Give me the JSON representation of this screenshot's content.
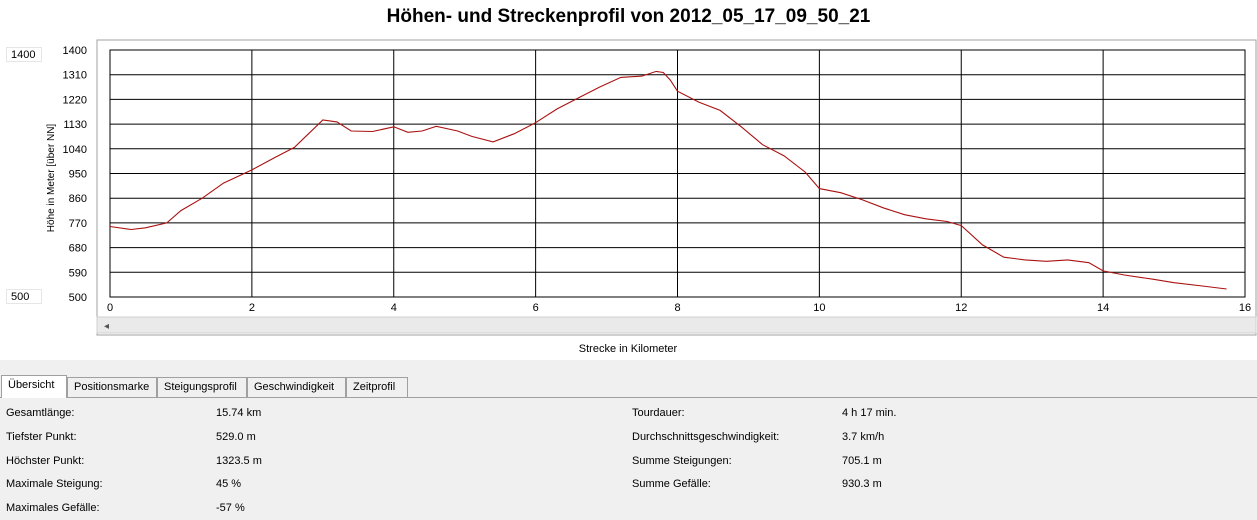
{
  "window": {
    "title": "Höhen- und Streckenprofil von 2012_05_17_09_50_21"
  },
  "scale_inputs": {
    "max": "1400",
    "min": "500"
  },
  "tabs": [
    {
      "label": "Übersicht",
      "active": true
    },
    {
      "label": "Positionsmarke",
      "active": false
    },
    {
      "label": "Steigungsprofil",
      "active": false
    },
    {
      "label": "Geschwindigkeit",
      "active": false
    },
    {
      "label": "Zeitprofil",
      "active": false
    }
  ],
  "stats_left": [
    {
      "label": "Gesamtlänge:",
      "value": "15.74 km"
    },
    {
      "label": "Tiefster Punkt:",
      "value": "529.0 m"
    },
    {
      "label": "Höchster Punkt:",
      "value": "1323.5 m"
    },
    {
      "label": "Maximale Steigung:",
      "value": "45 %"
    },
    {
      "label": "Maximales Gefälle:",
      "value": "-57 %"
    }
  ],
  "stats_right": [
    {
      "label": "Tourdauer:",
      "value": "4 h 17 min."
    },
    {
      "label": "Durchschnittsgeschwindigkeit:",
      "value": "3.7 km/h"
    },
    {
      "label": "Summe Steigungen:",
      "value": "705.1 m"
    },
    {
      "label": "Summe Gefälle:",
      "value": "930.3 m"
    }
  ],
  "chart_data": {
    "type": "line",
    "title": "Höhen- und Streckenprofil von 2012_05_17_09_50_21",
    "xlabel": "Strecke in Kilometer",
    "ylabel": "Höhe in Meter [über NN]",
    "xlim": [
      0,
      16
    ],
    "ylim": [
      500,
      1400
    ],
    "x_ticks": [
      "0",
      "2",
      "4",
      "6",
      "8",
      "10",
      "12",
      "14",
      "16"
    ],
    "y_ticks": [
      "500",
      "590",
      "680",
      "770",
      "860",
      "950",
      "1040",
      "1130",
      "1220",
      "1310",
      "1400"
    ],
    "grid": true,
    "line_color": "#aa1111",
    "series": [
      {
        "x": [
          0,
          0.3,
          0.5,
          0.8,
          1.0,
          1.3,
          1.6,
          2.0,
          2.3,
          2.6,
          2.8,
          3.0,
          3.2,
          3.4,
          3.7,
          4.0,
          4.2,
          4.4,
          4.6,
          4.9,
          5.1,
          5.4,
          5.7,
          6.0,
          6.3,
          6.6,
          6.9,
          7.2,
          7.5,
          7.7,
          7.8,
          7.9,
          8.0,
          8.3,
          8.6,
          8.9,
          9.2,
          9.5,
          9.8,
          10.0,
          10.3,
          10.6,
          10.9,
          11.2,
          11.5,
          11.8,
          12.0,
          12.3,
          12.6,
          12.9,
          13.2,
          13.5,
          13.8,
          14.0,
          14.3,
          14.7,
          15.0,
          15.4,
          15.74
        ],
        "y": [
          757,
          746,
          752,
          770,
          815,
          860,
          915,
          963,
          1005,
          1045,
          1095,
          1145,
          1138,
          1105,
          1103,
          1120,
          1100,
          1105,
          1122,
          1105,
          1085,
          1065,
          1095,
          1135,
          1185,
          1225,
          1265,
          1300,
          1305,
          1322,
          1318,
          1290,
          1250,
          1210,
          1180,
          1120,
          1055,
          1015,
          955,
          895,
          880,
          855,
          825,
          800,
          785,
          775,
          760,
          690,
          645,
          635,
          630,
          635,
          625,
          595,
          580,
          565,
          552,
          540,
          529
        ]
      }
    ]
  }
}
